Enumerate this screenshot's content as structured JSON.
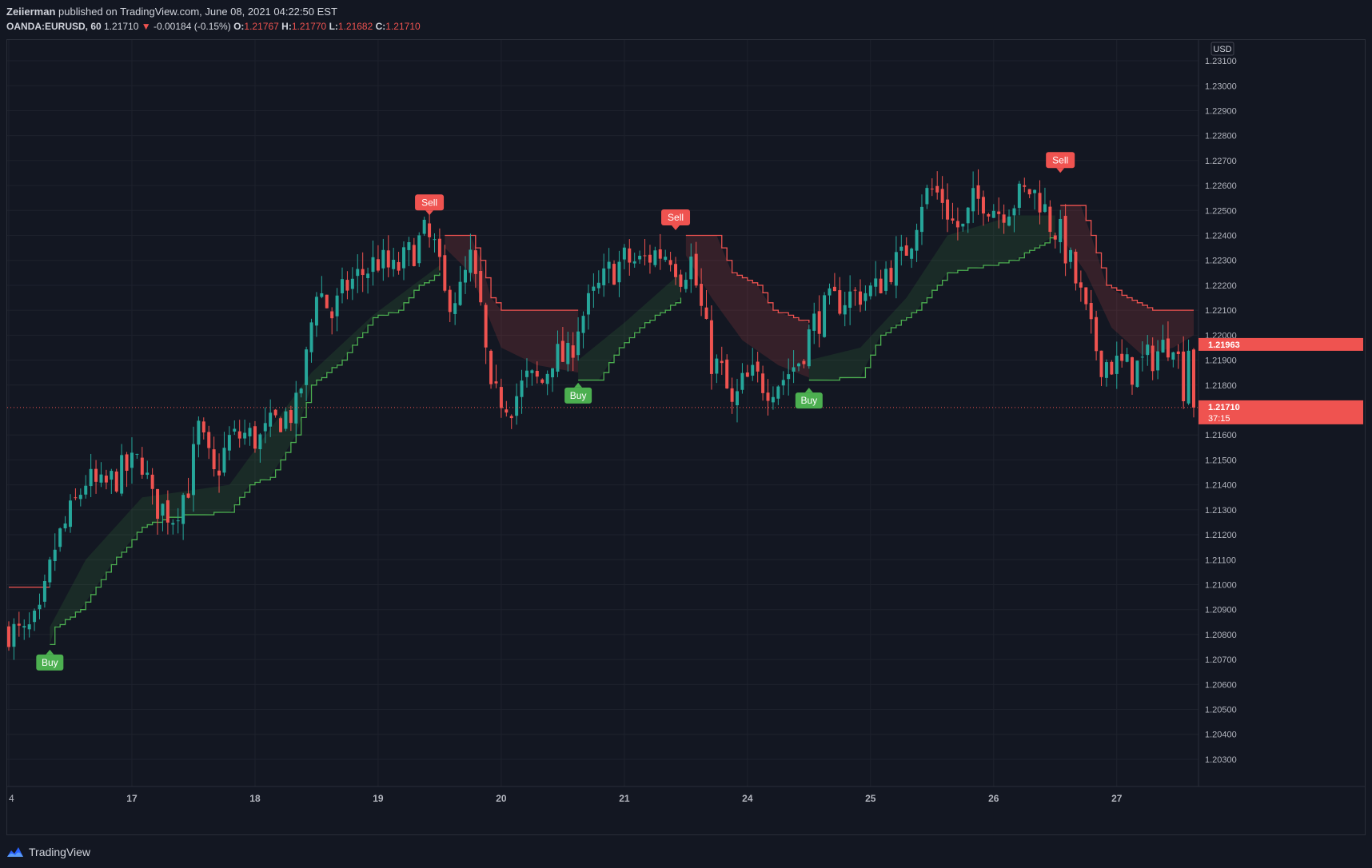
{
  "header": {
    "author": "Zeiierman",
    "published_text": "published on TradingView.com, June 08, 2021 04:22:50 EST",
    "symbol": "OANDA:EURUSD, 60",
    "last_price": "1.21710",
    "change_arrow": "▼",
    "change": "-0.00184 (-0.15%)",
    "o_label": "O:",
    "o_value": "1.21767",
    "h_label": "H:",
    "h_value": "1.21770",
    "l_label": "L:",
    "l_value": "1.21682",
    "c_label": "C:",
    "c_value": "1.21710"
  },
  "footer": {
    "brand": "TradingView",
    "icon": "tradingview-logo-icon"
  },
  "colors": {
    "background": "#131722",
    "grid": "#1e222d",
    "up": "#26a69a",
    "down": "#ef5350",
    "buy_line": "#4caf50",
    "sell_line": "#ef5350",
    "label_buy": "#4caf50",
    "label_sell": "#ef5350"
  },
  "chart_data": {
    "type": "candlestick",
    "symbol": "OANDA:EURUSD",
    "timeframe": "60",
    "currency": "USD",
    "ylim": [
      1.2025,
      1.2315
    ],
    "y_ticks": [
      "1.23100",
      "1.23000",
      "1.22900",
      "1.22800",
      "1.22700",
      "1.22600",
      "1.22500",
      "1.22400",
      "1.22300",
      "1.22200",
      "1.22100",
      "1.22000",
      "1.21900",
      "1.21800",
      "1.21600",
      "1.21500",
      "1.21400",
      "1.21300",
      "1.21200",
      "1.21100",
      "1.21000",
      "1.20900",
      "1.20800",
      "1.20700",
      "1.20600",
      "1.20500",
      "1.20400",
      "1.20300"
    ],
    "x_ticks": [
      "4",
      "17",
      "18",
      "19",
      "20",
      "21",
      "24",
      "25",
      "26",
      "27"
    ],
    "x_tick_bars": [
      0,
      24,
      48,
      72,
      96,
      120,
      144,
      168,
      192,
      216
    ],
    "candles_per_day": 24,
    "price_markers": [
      {
        "value": 1.21963,
        "label": "1.21963",
        "color": "#ef5350"
      },
      {
        "value": 1.2171,
        "label": "1.21710",
        "sub": "37:15",
        "color": "#ef5350"
      }
    ],
    "current_price_line": 1.2171,
    "signals": [
      {
        "type": "Buy",
        "bar": 8,
        "price": 1.2072,
        "label": "Buy"
      },
      {
        "type": "Sell",
        "bar": 82,
        "price": 1.225,
        "label": "Sell"
      },
      {
        "type": "Buy",
        "bar": 111,
        "price": 1.2179,
        "label": "Buy"
      },
      {
        "type": "Sell",
        "bar": 130,
        "price": 1.2244,
        "label": "Sell"
      },
      {
        "type": "Buy",
        "bar": 156,
        "price": 1.2177,
        "label": "Buy"
      },
      {
        "type": "Sell",
        "bar": 205,
        "price": 1.2267,
        "label": "Sell"
      }
    ],
    "close_keypoints": [
      [
        0,
        1.2082
      ],
      [
        3,
        1.2079
      ],
      [
        6,
        1.2086
      ],
      [
        9,
        1.2115
      ],
      [
        12,
        1.2128
      ],
      [
        15,
        1.2142
      ],
      [
        18,
        1.2138
      ],
      [
        22,
        1.2145
      ],
      [
        26,
        1.215
      ],
      [
        28,
        1.2133
      ],
      [
        32,
        1.2128
      ],
      [
        35,
        1.214
      ],
      [
        37,
        1.2162
      ],
      [
        40,
        1.2143
      ],
      [
        43,
        1.2158
      ],
      [
        46,
        1.216
      ],
      [
        49,
        1.2158
      ],
      [
        53,
        1.2167
      ],
      [
        56,
        1.217
      ],
      [
        58,
        1.219
      ],
      [
        60,
        1.222
      ],
      [
        63,
        1.2208
      ],
      [
        66,
        1.222
      ],
      [
        69,
        1.2225
      ],
      [
        72,
        1.223
      ],
      [
        75,
        1.2225
      ],
      [
        78,
        1.2232
      ],
      [
        81,
        1.224
      ],
      [
        83,
        1.2235
      ],
      [
        85,
        1.2215
      ],
      [
        88,
        1.2217
      ],
      [
        90,
        1.223
      ],
      [
        92,
        1.221
      ],
      [
        94,
        1.2174
      ],
      [
        96,
        1.2175
      ],
      [
        98,
        1.2173
      ],
      [
        101,
        1.2182
      ],
      [
        104,
        1.2181
      ],
      [
        106,
        1.2192
      ],
      [
        109,
        1.219
      ],
      [
        111,
        1.2205
      ],
      [
        114,
        1.2215
      ],
      [
        117,
        1.2225
      ],
      [
        120,
        1.223
      ],
      [
        123,
        1.2229
      ],
      [
        126,
        1.2233
      ],
      [
        129,
        1.2233
      ],
      [
        131,
        1.2225
      ],
      [
        133,
        1.223
      ],
      [
        135,
        1.221
      ],
      [
        137,
        1.219
      ],
      [
        139,
        1.2185
      ],
      [
        141,
        1.217
      ],
      [
        143,
        1.218
      ],
      [
        145,
        1.2183
      ],
      [
        148,
        1.218
      ],
      [
        151,
        1.2183
      ],
      [
        154,
        1.219
      ],
      [
        157,
        1.2205
      ],
      [
        160,
        1.2212
      ],
      [
        163,
        1.2215
      ],
      [
        166,
        1.2217
      ],
      [
        169,
        1.2218
      ],
      [
        171,
        1.2226
      ],
      [
        174,
        1.223
      ],
      [
        176,
        1.224
      ],
      [
        178,
        1.2255
      ],
      [
        180,
        1.2258
      ],
      [
        182,
        1.2255
      ],
      [
        184,
        1.2245
      ],
      [
        186,
        1.2242
      ],
      [
        188,
        1.2253
      ],
      [
        190,
        1.2255
      ],
      [
        193,
        1.225
      ],
      [
        196,
        1.2254
      ],
      [
        199,
        1.2258
      ],
      [
        201,
        1.2255
      ],
      [
        203,
        1.2245
      ],
      [
        205,
        1.224
      ],
      [
        207,
        1.2228
      ],
      [
        209,
        1.2215
      ],
      [
        211,
        1.22
      ],
      [
        213,
        1.219
      ],
      [
        216,
        1.2188
      ],
      [
        219,
        1.2186
      ],
      [
        222,
        1.219
      ],
      [
        225,
        1.2195
      ],
      [
        227,
        1.22
      ],
      [
        229,
        1.218
      ],
      [
        230,
        1.2196
      ],
      [
        231,
        1.2171
      ]
    ],
    "bull_trail_keypoints": [
      [
        0,
        1.2073
      ],
      [
        8,
        1.2076
      ],
      [
        9,
        1.2083
      ],
      [
        14,
        1.209
      ],
      [
        20,
        1.2108
      ],
      [
        26,
        1.2123
      ],
      [
        31,
        1.2127
      ],
      [
        43,
        1.2129
      ],
      [
        47,
        1.214
      ],
      [
        51,
        1.2143
      ],
      [
        56,
        1.216
      ],
      [
        59,
        1.218
      ],
      [
        65,
        1.219
      ],
      [
        71,
        1.2207
      ],
      [
        76,
        1.221
      ],
      [
        80,
        1.222
      ],
      [
        84,
        1.2225
      ]
    ],
    "bull_base_keypoints": [
      [
        0,
        1.208
      ],
      [
        8,
        1.2083
      ],
      [
        15,
        1.211
      ],
      [
        26,
        1.2135
      ],
      [
        43,
        1.214
      ],
      [
        59,
        1.2185
      ],
      [
        71,
        1.2208
      ],
      [
        84,
        1.2228
      ]
    ],
    "bear_trail_keypoints": [
      [
        85,
        1.224
      ],
      [
        90,
        1.224
      ],
      [
        92,
        1.223
      ],
      [
        94,
        1.2215
      ],
      [
        96,
        1.221
      ],
      [
        111,
        1.221
      ]
    ],
    "bear_base_keypoints": [
      [
        85,
        1.2235
      ],
      [
        90,
        1.2225
      ],
      [
        93,
        1.221
      ],
      [
        96,
        1.2195
      ],
      [
        103,
        1.2188
      ],
      [
        111,
        1.2185
      ]
    ],
    "bull2_trail_keypoints": [
      [
        111,
        1.2182
      ],
      [
        115,
        1.2182
      ],
      [
        119,
        1.2195
      ],
      [
        124,
        1.2205
      ],
      [
        128,
        1.221
      ],
      [
        131,
        1.2215
      ]
    ],
    "bull2_base_keypoints": [
      [
        111,
        1.219
      ],
      [
        120,
        1.2205
      ],
      [
        131,
        1.2225
      ]
    ],
    "bear2_trail_keypoints": [
      [
        132,
        1.224
      ],
      [
        138,
        1.224
      ],
      [
        141,
        1.2225
      ],
      [
        146,
        1.222
      ],
      [
        149,
        1.221
      ],
      [
        156,
        1.2205
      ]
    ],
    "bear2_base_keypoints": [
      [
        132,
        1.2232
      ],
      [
        137,
        1.2215
      ],
      [
        143,
        1.2198
      ],
      [
        150,
        1.2188
      ],
      [
        156,
        1.2183
      ]
    ],
    "bull3_trail_keypoints": [
      [
        156,
        1.2182
      ],
      [
        166,
        1.2183
      ],
      [
        170,
        1.22
      ],
      [
        177,
        1.221
      ],
      [
        183,
        1.2225
      ],
      [
        196,
        1.223
      ],
      [
        200,
        1.2235
      ],
      [
        204,
        1.224
      ]
    ],
    "bull3_base_keypoints": [
      [
        156,
        1.219
      ],
      [
        166,
        1.2195
      ],
      [
        175,
        1.2215
      ],
      [
        183,
        1.224
      ],
      [
        196,
        1.2248
      ],
      [
        204,
        1.2248
      ]
    ],
    "bear3_trail_keypoints": [
      [
        205,
        1.2252
      ],
      [
        209,
        1.2252
      ],
      [
        211,
        1.224
      ],
      [
        214,
        1.222
      ],
      [
        218,
        1.2215
      ],
      [
        223,
        1.221
      ],
      [
        231,
        1.221
      ]
    ],
    "bear3_base_keypoints": [
      [
        205,
        1.224
      ],
      [
        210,
        1.2225
      ],
      [
        215,
        1.2203
      ],
      [
        221,
        1.2192
      ],
      [
        227,
        1.2195
      ],
      [
        231,
        1.22
      ]
    ],
    "pre_bear_trail_keypoints": [
      [
        0,
        1.2099
      ],
      [
        8,
        1.2099
      ]
    ],
    "total_bars": 232
  }
}
